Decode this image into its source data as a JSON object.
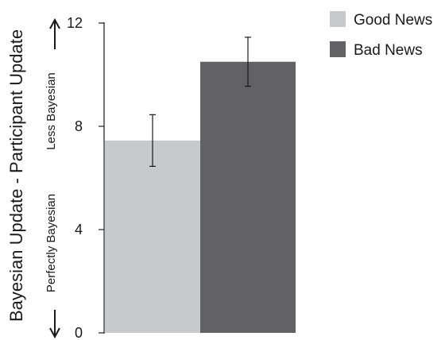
{
  "chart_data": {
    "type": "bar",
    "categories": [
      "Good News",
      "Bad News"
    ],
    "values": [
      7.45,
      10.5
    ],
    "error": [
      1.0,
      0.95
    ],
    "colors": [
      "#c8c9cb",
      "#626264"
    ],
    "ylabel": "Bayesian Update - Participant Update",
    "ylabel_low": "Perfectly Bayesian",
    "ylabel_high": "Less Bayesian",
    "ylim": [
      0,
      12
    ],
    "yticks": [
      "0",
      "4",
      "8",
      "12"
    ],
    "ytick_values": [
      0,
      4,
      8,
      12
    ],
    "legend": [
      {
        "label": "Good News",
        "color": "#c8c9cb"
      },
      {
        "label": "Bad News",
        "color": "#626264"
      }
    ],
    "legend_position": "top-right",
    "grid": false
  }
}
